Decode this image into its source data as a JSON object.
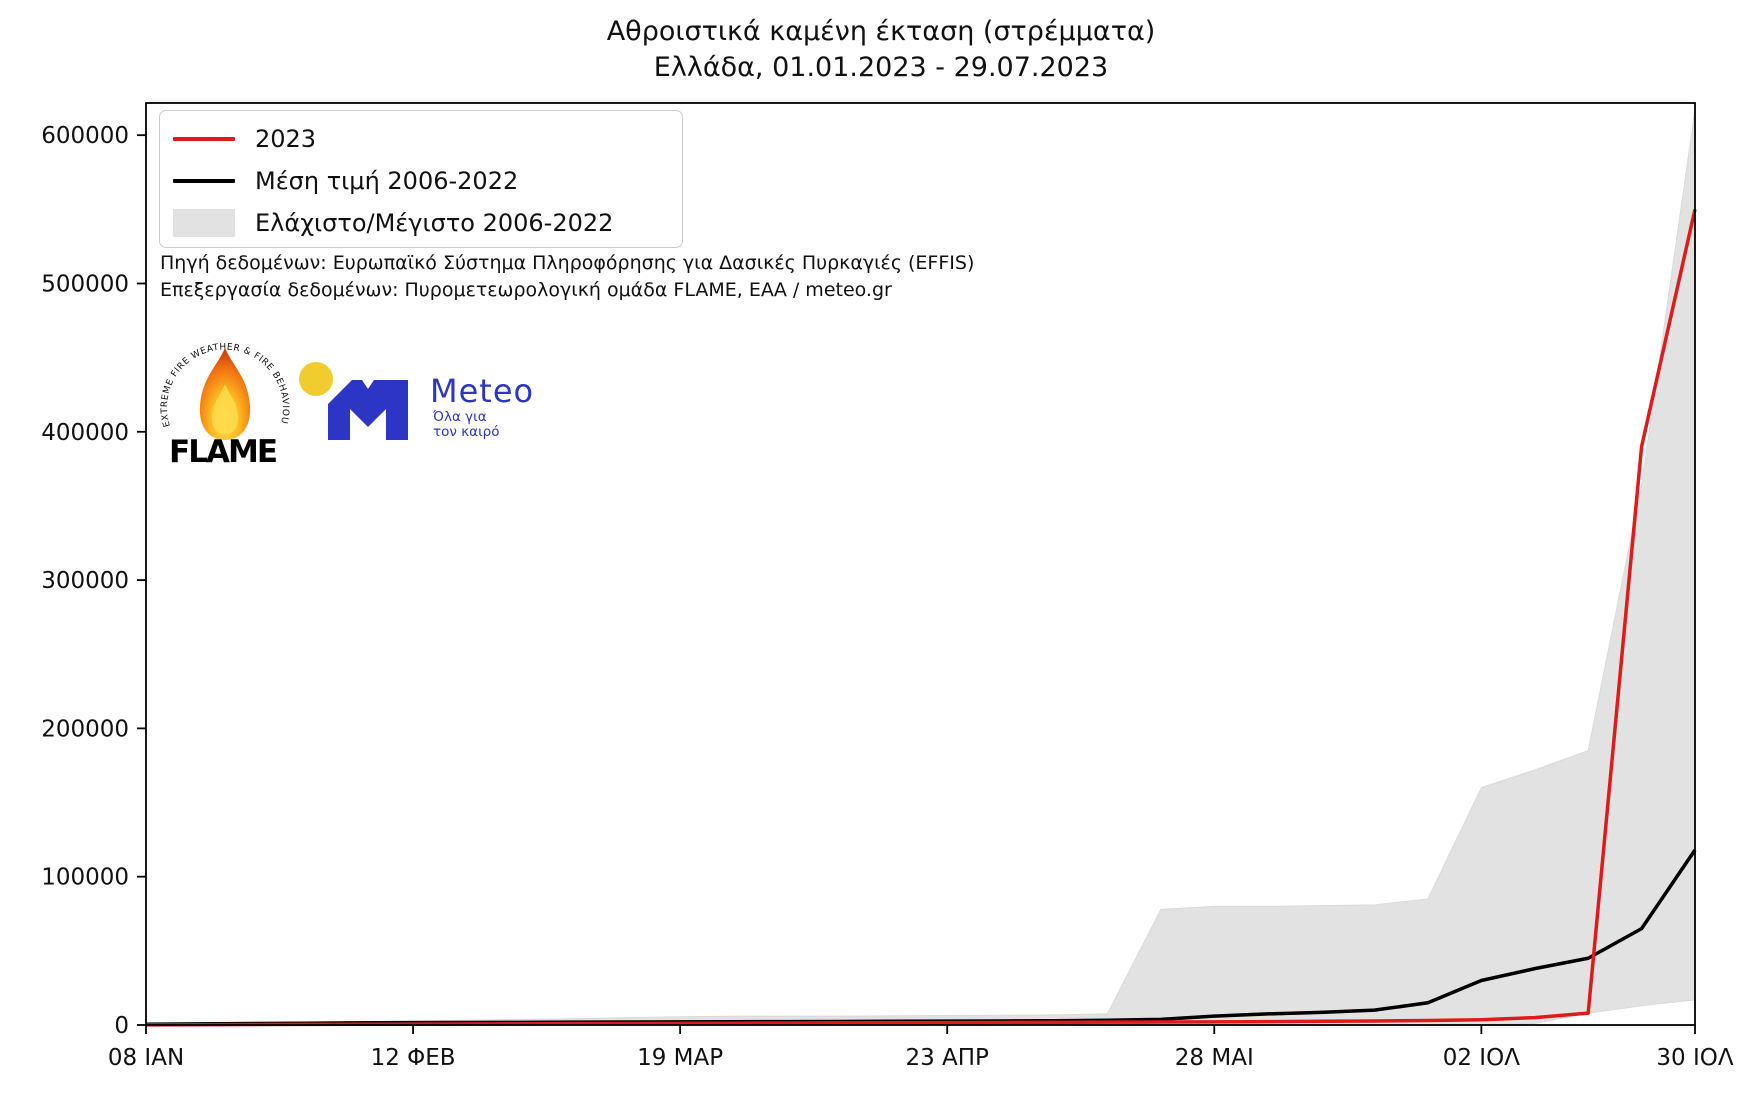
{
  "page": {
    "background": "#ffffff"
  },
  "title": "Αθροιστικά καμένη έκταση (στρέμματα)",
  "subtitle": "Ελλάδα, 01.01.2023 - 29.07.2023",
  "legend": {
    "items": [
      {
        "label": "2023",
        "type": "line",
        "color": "#e01a1a"
      },
      {
        "label": "Μέση τιμή 2006-2022",
        "type": "line",
        "color": "#000000"
      },
      {
        "label": "Ελάχιστο/Μέγιστο 2006-2022",
        "type": "patch",
        "color": "#e2e2e2"
      }
    ]
  },
  "source": {
    "line1": "Πηγή δεδομένων: Ευρωπαϊκό Σύστημα Πληροφόρησης για Δασικές Πυρκαγιές (EFFIS)",
    "line2": "Επεξεργασία δεδομένων: Πυρομετεωρολογική ομάδα FLAME, ΕΑΑ / meteo.gr"
  },
  "logos": {
    "flame": {
      "arc_text": "EXTREME FIRE WEATHER & FIRE BEHAVIOUR",
      "wordmark": "FLAME"
    },
    "meteo": {
      "wordmark": "Meteo",
      "tagline_line1": "Όλα για",
      "tagline_line2": "τον καιρό",
      "blue": "#2c35c4",
      "yellow": "#f0cc2e"
    }
  },
  "chart_data": {
    "type": "line",
    "title": "Αθροιστικά καμένη έκταση (στρέμματα)",
    "subtitle": "Ελλάδα, 01.01.2023 - 29.07.2023",
    "xlabel": "",
    "ylabel": "",
    "grid": false,
    "legend_position": "upper-left",
    "x_domain_days": [
      7,
      210
    ],
    "y_domain": [
      0,
      621700
    ],
    "x_tick_days": [
      7,
      42,
      77,
      112,
      147,
      182,
      210
    ],
    "x_tick_labels": [
      "08 ΙΑΝ",
      "12 ΦΕΒ",
      "19 ΜΑΡ",
      "23 ΑΠΡ",
      "28 ΜΑΙ",
      "02 ΙΟΛ",
      "30 ΙΟΛ"
    ],
    "y_ticks": [
      0,
      100000,
      200000,
      300000,
      400000,
      500000,
      600000
    ],
    "y_tick_labels": [
      "0",
      "100000",
      "200000",
      "300000",
      "400000",
      "500000",
      "600000"
    ],
    "x_days": [
      7,
      14,
      21,
      28,
      35,
      42,
      49,
      56,
      63,
      70,
      77,
      84,
      91,
      98,
      105,
      112,
      119,
      126,
      133,
      140,
      147,
      154,
      161,
      168,
      175,
      182,
      189,
      196,
      203,
      210
    ],
    "series": [
      {
        "name": "2023",
        "color": "#e01a1a",
        "width": 3.5,
        "values": [
          100,
          200,
          300,
          400,
          500,
          600,
          700,
          800,
          900,
          1000,
          1100,
          1200,
          1300,
          1400,
          1500,
          1600,
          1700,
          1800,
          1900,
          2000,
          2100,
          2300,
          2500,
          2700,
          3000,
          3500,
          5000,
          8000,
          390000,
          550000
        ]
      },
      {
        "name": "Μέση τιμή 2006-2022",
        "color": "#000000",
        "width": 3.5,
        "values": [
          500,
          800,
          1000,
          1200,
          1400,
          1600,
          1700,
          1800,
          1900,
          2000,
          2100,
          2200,
          2300,
          2400,
          2500,
          2600,
          2700,
          2900,
          3200,
          3800,
          6000,
          7500,
          8500,
          10000,
          15000,
          30000,
          38000,
          45000,
          65000,
          118000
        ]
      }
    ],
    "band": {
      "name": "Ελάχιστο/Μέγιστο 2006-2022",
      "color": "#e2e2e2",
      "max": [
        800,
        1200,
        1600,
        2000,
        2400,
        2800,
        3200,
        3600,
        4200,
        5000,
        5600,
        6000,
        6000,
        6000,
        6200,
        6400,
        6600,
        6800,
        7500,
        78000,
        80000,
        80000,
        80500,
        81000,
        85000,
        160000,
        172000,
        185000,
        364000,
        617000
      ],
      "min": [
        0,
        0,
        0,
        0,
        0,
        0,
        0,
        0,
        0,
        0,
        0,
        0,
        0,
        0,
        0,
        0,
        0,
        0,
        0,
        0,
        0,
        0,
        0,
        0,
        0,
        0,
        1000,
        8000,
        13000,
        17000
      ]
    }
  }
}
